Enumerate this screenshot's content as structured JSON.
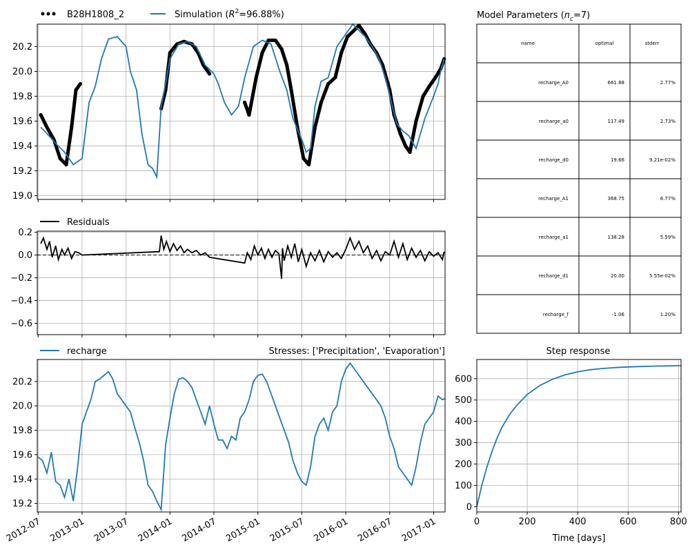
{
  "colors": {
    "simulation": "#1f77b4",
    "observed": "#000000",
    "grid": "#b0b0b0",
    "axis": "#000000"
  },
  "chart_data": [
    {
      "id": "observed-vs-simulated",
      "type": "line",
      "legend": {
        "observed_label": "B28H1808_2",
        "simulation_label_prefix": "Simulation (",
        "r2_symbol": "R",
        "r2_superscript": "2",
        "simulation_label_suffix": "=96.88%)"
      },
      "ylim": [
        18.97,
        20.38
      ],
      "yticks": [
        19.0,
        19.2,
        19.4,
        19.6,
        19.8,
        20.0,
        20.2
      ],
      "ytick_labels": [
        "19.0",
        "19.2",
        "19.4",
        "19.6",
        "19.8",
        "20.0",
        "20.2"
      ],
      "series": [
        {
          "name": "Simulation",
          "style": "line",
          "x": [
            2012.53,
            2012.6,
            2012.7,
            2012.8,
            2012.9,
            2013.0,
            2013.08,
            2013.15,
            2013.22,
            2013.3,
            2013.4,
            2013.5,
            2013.55,
            2013.62,
            2013.68,
            2013.75,
            2013.8,
            2013.85,
            2013.9,
            2013.95,
            2014.0,
            2014.1,
            2014.2,
            2014.3,
            2014.4,
            2014.5,
            2014.55,
            2014.62,
            2014.7,
            2014.78,
            2014.85,
            2014.95,
            2015.05,
            2015.15,
            2015.25,
            2015.33,
            2015.4,
            2015.5,
            2015.55,
            2015.6,
            2015.65,
            2015.72,
            2015.8,
            2015.9,
            2016.0,
            2016.08,
            2016.15,
            2016.22,
            2016.3,
            2016.38,
            2016.45,
            2016.52,
            2016.58,
            2016.65,
            2016.72,
            2016.8,
            2016.9,
            2017.0,
            2017.05,
            2017.08,
            2017.12
          ],
          "y": [
            19.55,
            19.5,
            19.42,
            19.35,
            19.25,
            19.3,
            19.75,
            19.88,
            20.1,
            20.26,
            20.28,
            20.2,
            20.0,
            19.85,
            19.5,
            19.25,
            19.22,
            19.15,
            19.72,
            19.9,
            20.1,
            20.22,
            20.24,
            20.2,
            20.05,
            19.98,
            19.9,
            19.75,
            19.65,
            19.72,
            19.95,
            20.2,
            20.25,
            20.22,
            20.0,
            19.85,
            19.62,
            19.45,
            19.35,
            19.38,
            19.72,
            19.92,
            19.95,
            20.2,
            20.3,
            20.38,
            20.33,
            20.28,
            20.2,
            20.1,
            19.95,
            19.75,
            19.58,
            19.52,
            19.48,
            19.38,
            19.62,
            19.8,
            19.9,
            20.0,
            20.1
          ]
        },
        {
          "name": "B28H1808_2",
          "style": "points",
          "segments": [
            {
              "x": [
                2012.53,
                2012.6,
                2012.68,
                2012.75,
                2012.82,
                2012.88,
                2012.93,
                2012.98
              ],
              "y": [
                19.65,
                19.55,
                19.45,
                19.3,
                19.25,
                19.55,
                19.85,
                19.9
              ]
            },
            {
              "x": [
                2013.9,
                2013.95,
                2014.0,
                2014.08,
                2014.16,
                2014.25,
                2014.32,
                2014.38,
                2014.45
              ],
              "y": [
                19.7,
                19.85,
                20.15,
                20.22,
                20.24,
                20.22,
                20.15,
                20.05,
                19.98
              ]
            },
            {
              "x": [
                2014.85,
                2014.9,
                2014.98,
                2015.05,
                2015.12,
                2015.2,
                2015.27,
                2015.33,
                2015.38,
                2015.45,
                2015.52,
                2015.58,
                2015.65,
                2015.72,
                2015.8,
                2015.88,
                2015.95,
                2016.02,
                2016.08,
                2016.15,
                2016.22,
                2016.28,
                2016.35,
                2016.42,
                2016.5,
                2016.55,
                2016.62,
                2016.68,
                2016.73,
                2016.8,
                2016.88,
                2016.95,
                2017.02,
                2017.08,
                2017.12
              ],
              "y": [
                19.75,
                19.65,
                19.95,
                20.15,
                20.25,
                20.25,
                20.18,
                20.05,
                19.85,
                19.55,
                19.3,
                19.25,
                19.55,
                19.75,
                19.9,
                19.95,
                20.15,
                20.28,
                20.32,
                20.37,
                20.3,
                20.22,
                20.15,
                20.05,
                19.85,
                19.65,
                19.5,
                19.4,
                19.35,
                19.6,
                19.8,
                19.88,
                19.95,
                20.02,
                20.1
              ]
            }
          ]
        }
      ]
    },
    {
      "id": "residuals",
      "type": "line",
      "legend": {
        "label": "Residuals"
      },
      "ylim": [
        -0.7,
        0.21
      ],
      "yticks": [
        0.2,
        0.0,
        -0.2,
        -0.4,
        -0.6
      ],
      "ytick_labels": [
        "0.2",
        "0.0",
        "−0.2",
        "−0.4",
        "−0.6"
      ],
      "series": [
        {
          "name": "Residuals",
          "x": [
            2012.53,
            2012.56,
            2012.6,
            2012.63,
            2012.66,
            2012.7,
            2012.73,
            2012.77,
            2012.8,
            2012.84,
            2012.88,
            2012.92,
            2012.96,
            2013.0,
            2013.88,
            2013.9,
            2013.93,
            2013.96,
            2014.0,
            2014.04,
            2014.08,
            2014.12,
            2014.16,
            2014.2,
            2014.25,
            2014.3,
            2014.35,
            2014.4,
            2014.45,
            2014.85,
            2014.88,
            2014.92,
            2014.96,
            2015.0,
            2015.04,
            2015.08,
            2015.12,
            2015.16,
            2015.2,
            2015.24,
            2015.27,
            2015.28,
            2015.3,
            2015.34,
            2015.38,
            2015.42,
            2015.46,
            2015.5,
            2015.55,
            2015.6,
            2015.65,
            2015.7,
            2015.75,
            2015.8,
            2015.85,
            2015.9,
            2015.95,
            2016.0,
            2016.05,
            2016.1,
            2016.15,
            2016.2,
            2016.25,
            2016.3,
            2016.35,
            2016.4,
            2016.45,
            2016.5,
            2016.55,
            2016.6,
            2016.65,
            2016.7,
            2016.75,
            2016.8,
            2016.85,
            2016.9,
            2016.95,
            2017.0,
            2017.05,
            2017.1,
            2017.12
          ],
          "y": [
            0.1,
            0.15,
            0.05,
            0.12,
            -0.02,
            0.08,
            -0.04,
            0.05,
            0.0,
            0.06,
            -0.03,
            0.03,
            0.02,
            0.0,
            0.03,
            0.17,
            0.05,
            0.12,
            0.03,
            0.1,
            0.04,
            0.08,
            0.02,
            0.05,
            0.02,
            0.04,
            0.0,
            0.02,
            -0.02,
            -0.07,
            0.02,
            -0.04,
            0.08,
            0.0,
            0.06,
            -0.03,
            0.05,
            -0.02,
            0.04,
            0.01,
            -0.21,
            0.06,
            -0.05,
            0.08,
            -0.02,
            0.1,
            -0.06,
            0.05,
            -0.1,
            0.02,
            -0.05,
            0.04,
            -0.06,
            0.03,
            -0.02,
            0.02,
            -0.03,
            0.05,
            0.15,
            0.05,
            0.12,
            0.02,
            0.08,
            -0.03,
            0.04,
            -0.05,
            0.03,
            0.0,
            0.12,
            -0.02,
            0.1,
            -0.04,
            0.06,
            -0.02,
            0.04,
            -0.05,
            0.03,
            -0.01,
            0.02,
            -0.04,
            0.03
          ]
        }
      ]
    },
    {
      "id": "stress-contribution",
      "type": "line",
      "legend": {
        "label": "recharge"
      },
      "title_right": "Stresses: ['Precipitation', 'Evaporation']",
      "ylim": [
        19.13,
        20.38
      ],
      "yticks": [
        19.2,
        19.4,
        19.6,
        19.8,
        20.0,
        20.2
      ],
      "ytick_labels": [
        "19.2",
        "19.4",
        "19.6",
        "19.8",
        "20.0",
        "20.2"
      ],
      "xlim": [
        2012.49,
        2017.13
      ],
      "xticks": [
        2012.5,
        2013.0,
        2013.5,
        2014.0,
        2014.5,
        2015.0,
        2015.5,
        2016.0,
        2016.5,
        2017.0
      ],
      "xtick_labels": [
        "2012-07",
        "2013-01",
        "2013-07",
        "2014-01",
        "2014-07",
        "2015-01",
        "2015-07",
        "2016-01",
        "2016-07",
        "2017-01"
      ],
      "series": [
        {
          "name": "recharge",
          "x": [
            2012.5,
            2012.55,
            2012.6,
            2012.65,
            2012.7,
            2012.75,
            2012.8,
            2012.85,
            2012.9,
            2012.95,
            2013.0,
            2013.05,
            2013.1,
            2013.15,
            2013.2,
            2013.25,
            2013.3,
            2013.35,
            2013.4,
            2013.45,
            2013.5,
            2013.55,
            2013.6,
            2013.65,
            2013.7,
            2013.75,
            2013.8,
            2013.85,
            2013.9,
            2013.95,
            2014.0,
            2014.05,
            2014.1,
            2014.15,
            2014.2,
            2014.25,
            2014.3,
            2014.35,
            2014.4,
            2014.45,
            2014.5,
            2014.55,
            2014.6,
            2014.65,
            2014.7,
            2014.75,
            2014.8,
            2014.85,
            2014.9,
            2014.95,
            2015.0,
            2015.05,
            2015.1,
            2015.15,
            2015.2,
            2015.25,
            2015.3,
            2015.35,
            2015.4,
            2015.45,
            2015.5,
            2015.55,
            2015.6,
            2015.65,
            2015.7,
            2015.75,
            2015.8,
            2015.85,
            2015.9,
            2015.95,
            2016.0,
            2016.05,
            2016.1,
            2016.15,
            2016.2,
            2016.25,
            2016.3,
            2016.35,
            2016.4,
            2016.45,
            2016.5,
            2016.55,
            2016.6,
            2016.65,
            2016.7,
            2016.75,
            2016.8,
            2016.85,
            2016.9,
            2016.95,
            2017.0,
            2017.05,
            2017.1,
            2017.13
          ],
          "y": [
            19.58,
            19.55,
            19.45,
            19.62,
            19.38,
            19.35,
            19.25,
            19.4,
            19.22,
            19.5,
            19.85,
            19.95,
            20.05,
            20.2,
            20.22,
            20.25,
            20.28,
            20.22,
            20.1,
            20.05,
            20.0,
            19.95,
            19.82,
            19.7,
            19.55,
            19.35,
            19.3,
            19.22,
            19.15,
            19.68,
            19.9,
            20.1,
            20.22,
            20.23,
            20.2,
            20.15,
            20.05,
            19.95,
            19.85,
            20.0,
            19.85,
            19.72,
            19.72,
            19.65,
            19.75,
            19.72,
            19.9,
            19.95,
            20.05,
            20.2,
            20.25,
            20.26,
            20.2,
            20.1,
            20.0,
            19.9,
            19.8,
            19.7,
            19.55,
            19.45,
            19.38,
            19.35,
            19.5,
            19.75,
            19.85,
            19.9,
            19.8,
            19.95,
            20.0,
            20.2,
            20.3,
            20.35,
            20.3,
            20.25,
            20.2,
            20.15,
            20.1,
            20.05,
            20.0,
            19.9,
            19.75,
            19.65,
            19.5,
            19.45,
            19.4,
            19.35,
            19.5,
            19.7,
            19.85,
            19.9,
            19.95,
            20.08,
            20.05,
            20.06
          ]
        }
      ]
    },
    {
      "id": "step-response",
      "type": "line",
      "title": "Step response",
      "xlabel": "Time [days]",
      "xlim": [
        0,
        810
      ],
      "ylim": [
        -25,
        690
      ],
      "xticks": [
        0,
        200,
        400,
        600,
        800
      ],
      "xtick_labels": [
        "0",
        "200",
        "400",
        "600",
        "800"
      ],
      "yticks": [
        0,
        100,
        200,
        300,
        400,
        500,
        600
      ],
      "ytick_labels": [
        "0",
        "100",
        "200",
        "300",
        "400",
        "500",
        "600"
      ],
      "series": [
        {
          "name": "Step response",
          "x": [
            0,
            20,
            40,
            60,
            80,
            100,
            130,
            160,
            200,
            250,
            300,
            350,
            400,
            450,
            500,
            550,
            600,
            650,
            700,
            750,
            810
          ],
          "y": [
            0,
            100,
            185,
            258,
            320,
            372,
            432,
            477,
            526,
            568,
            597,
            618,
            632,
            642,
            648,
            652,
            655,
            657,
            659,
            660,
            661
          ]
        }
      ]
    }
  ],
  "parameters_table": {
    "title_prefix": "Model Parameters (",
    "title_n": "n",
    "title_sub": "c",
    "title_suffix": "=7)",
    "columns": [
      "name",
      "optimal",
      "stderr"
    ],
    "rows": [
      {
        "name": "recharge_A0",
        "optimal": "661.88",
        "stderr": "2.77%"
      },
      {
        "name": "recharge_a0",
        "optimal": "117.49",
        "stderr": "2.73%"
      },
      {
        "name": "recharge_d0",
        "optimal": "19.66",
        "stderr": "9.21e-02%"
      },
      {
        "name": "recharge_A1",
        "optimal": "368.75",
        "stderr": "6.77%"
      },
      {
        "name": "recharge_a1",
        "optimal": "138.28",
        "stderr": "5.59%"
      },
      {
        "name": "recharge_d1",
        "optimal": "20.00",
        "stderr": "5.55e-02%"
      },
      {
        "name": "recharge_f",
        "optimal": "-1.06",
        "stderr": "1.20%"
      }
    ]
  }
}
